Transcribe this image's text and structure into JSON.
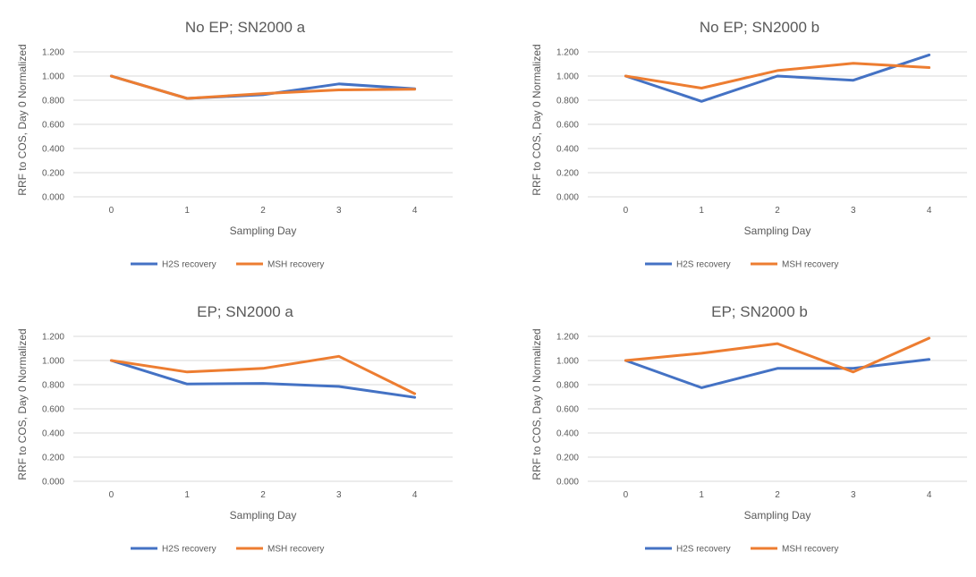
{
  "chart_data": [
    {
      "type": "line",
      "title": "No EP; SN2000 a",
      "xlabel": "Sampling Day",
      "ylabel": "RRF to COS, Day 0 Normalized",
      "categories": [
        "0",
        "1",
        "2",
        "3",
        "4"
      ],
      "yticks": [
        "0.000",
        "0.200",
        "0.400",
        "0.600",
        "0.800",
        "1.000",
        "1.200"
      ],
      "ylim": [
        0,
        1.2
      ],
      "grid": true,
      "legend_position": "bottom",
      "series": [
        {
          "name": "H2S recovery",
          "color": "#4472c4",
          "values": [
            1.0,
            0.815,
            0.845,
            0.935,
            0.895
          ]
        },
        {
          "name": "MSH recovery",
          "color": "#ed7d31",
          "values": [
            1.0,
            0.815,
            0.855,
            0.885,
            0.89
          ]
        }
      ]
    },
    {
      "type": "line",
      "title": "No EP; SN2000 b",
      "xlabel": "Sampling Day",
      "ylabel": "RRF to COS, Day 0 Normalized",
      "categories": [
        "0",
        "1",
        "2",
        "3",
        "4"
      ],
      "yticks": [
        "0.000",
        "0.200",
        "0.400",
        "0.600",
        "0.800",
        "1.000",
        "1.200"
      ],
      "ylim": [
        0,
        1.2
      ],
      "grid": true,
      "legend_position": "bottom",
      "series": [
        {
          "name": "H2S recovery",
          "color": "#4472c4",
          "values": [
            1.0,
            0.79,
            1.0,
            0.965,
            1.175
          ]
        },
        {
          "name": "MSH recovery",
          "color": "#ed7d31",
          "values": [
            1.0,
            0.9,
            1.045,
            1.105,
            1.07
          ]
        }
      ]
    },
    {
      "type": "line",
      "title": "EP; SN2000 a",
      "xlabel": "Sampling Day",
      "ylabel": "RRF to COS, Day 0 Normalized",
      "categories": [
        "0",
        "1",
        "2",
        "3",
        "4"
      ],
      "yticks": [
        "0.000",
        "0.200",
        "0.400",
        "0.600",
        "0.800",
        "1.000",
        "1.200"
      ],
      "ylim": [
        0,
        1.2
      ],
      "grid": true,
      "legend_position": "bottom",
      "series": [
        {
          "name": "H2S recovery",
          "color": "#4472c4",
          "values": [
            1.0,
            0.805,
            0.81,
            0.785,
            0.695
          ]
        },
        {
          "name": "MSH recovery",
          "color": "#ed7d31",
          "values": [
            1.0,
            0.905,
            0.935,
            1.035,
            0.725
          ]
        }
      ]
    },
    {
      "type": "line",
      "title": "EP; SN2000 b",
      "xlabel": "Sampling Day",
      "ylabel": "RRF to COS, Day 0 Normalized",
      "categories": [
        "0",
        "1",
        "2",
        "3",
        "4"
      ],
      "yticks": [
        "0.000",
        "0.200",
        "0.400",
        "0.600",
        "0.800",
        "1.000",
        "1.200"
      ],
      "ylim": [
        0,
        1.2
      ],
      "grid": true,
      "legend_position": "bottom",
      "series": [
        {
          "name": "H2S recovery",
          "color": "#4472c4",
          "values": [
            1.0,
            0.775,
            0.935,
            0.935,
            1.01
          ]
        },
        {
          "name": "MSH recovery",
          "color": "#ed7d31",
          "values": [
            1.0,
            1.06,
            1.14,
            0.905,
            1.185
          ]
        }
      ]
    }
  ]
}
